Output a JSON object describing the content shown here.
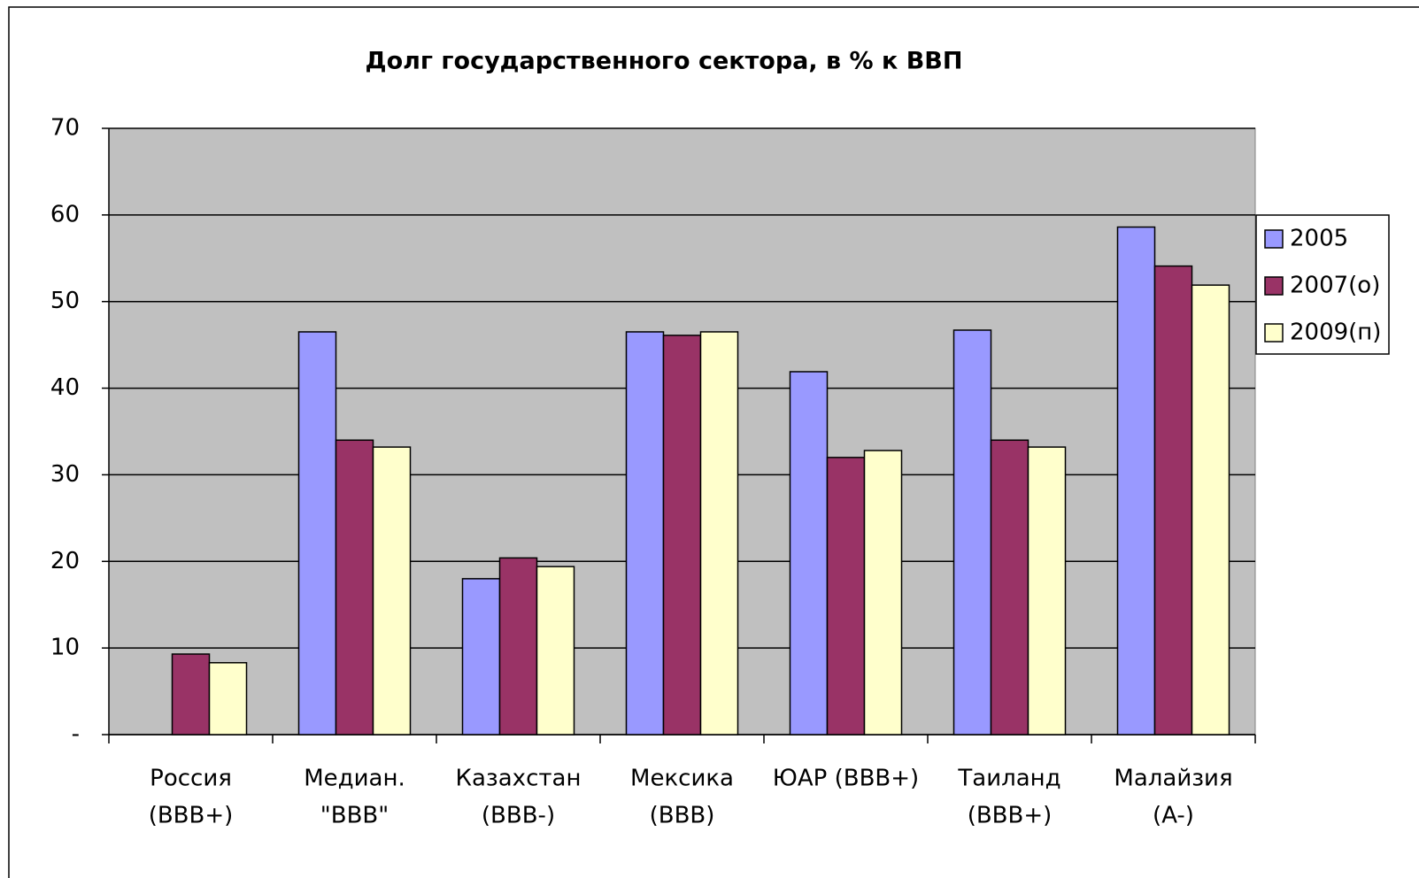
{
  "chart_data": {
    "type": "bar",
    "title": "Долг государственного сектора, в  % к ВВП",
    "categories": [
      [
        "Россия",
        "(BBB+)"
      ],
      [
        "Медиан.",
        "\"BBB\""
      ],
      [
        "Казахстан",
        "(BBB-)"
      ],
      [
        "Мексика",
        "(BBB)"
      ],
      [
        "ЮАР (BBB+)"
      ],
      [
        "Таиланд",
        "(BBB+)"
      ],
      [
        "Малайзия",
        "(A-)"
      ]
    ],
    "series": [
      {
        "name": "2005",
        "color": "#9999ff",
        "values": [
          null,
          46.5,
          18,
          46.5,
          41.9,
          46.7,
          58.6
        ]
      },
      {
        "name": "2007(о)",
        "color": "#993366",
        "values": [
          9.3,
          34,
          20.4,
          46.1,
          32,
          34,
          54.1
        ]
      },
      {
        "name": "2009(п)",
        "color": "#ffffcc",
        "values": [
          8.3,
          33.2,
          19.4,
          46.5,
          32.8,
          33.2,
          51.9
        ]
      }
    ],
    "ylim": [
      0,
      70
    ],
    "yticks": [
      {
        "value": 0,
        "label": "-"
      },
      10,
      20,
      30,
      40,
      50,
      60,
      70
    ],
    "grid": true,
    "legend": "right",
    "plot_background": "#c0c0c0"
  }
}
